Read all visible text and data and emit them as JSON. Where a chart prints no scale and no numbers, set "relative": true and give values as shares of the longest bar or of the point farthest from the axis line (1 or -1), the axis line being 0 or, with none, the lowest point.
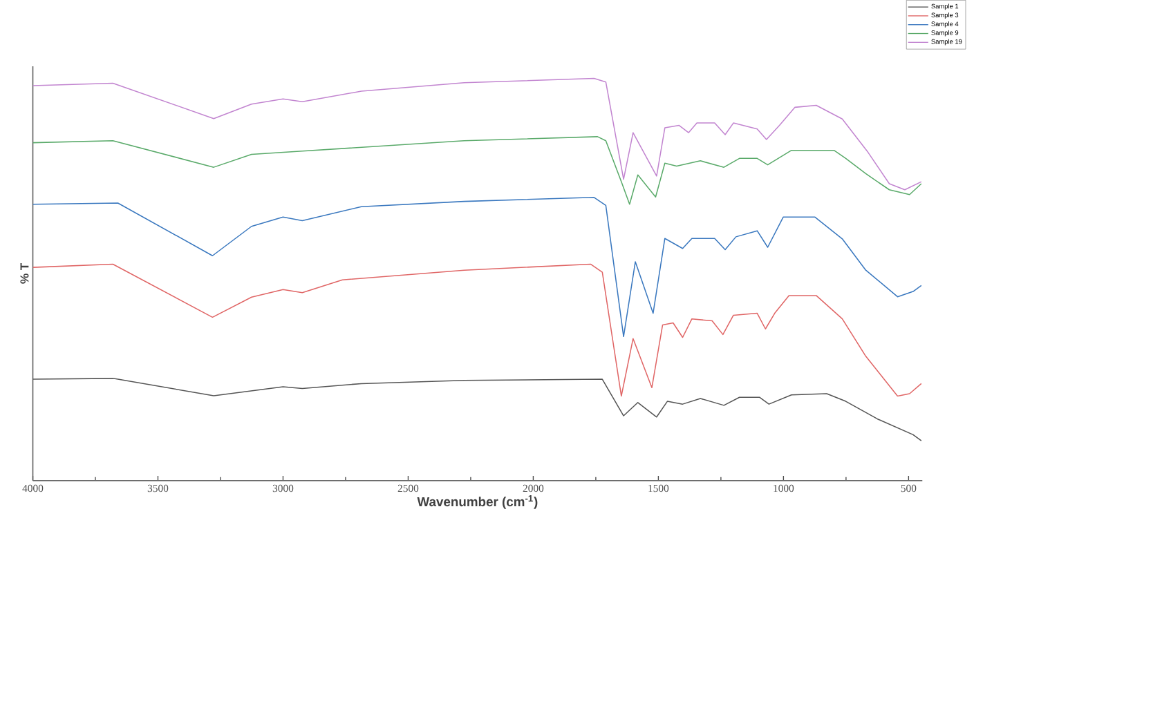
{
  "chart_data": {
    "type": "line",
    "relative": true,
    "xlabel": "Wavenumber (cm$^{-1}$)",
    "ylabel": "% T",
    "xlim": [
      4000,
      445
    ],
    "xticks": [
      4000,
      3500,
      3000,
      2500,
      2000,
      1500,
      1000,
      500
    ],
    "legend": "top right",
    "series": [
      {
        "name": "Sample 1",
        "color": "#555555",
        "x": [
          4000,
          3680,
          3277,
          3000,
          2923,
          2687,
          2276,
          1724,
          1639,
          1582,
          1507,
          1464,
          1403,
          1332,
          1238,
          1176,
          1096,
          1058,
          968,
          827,
          751,
          624,
          482,
          449
        ],
        "values": [
          0.252,
          0.254,
          0.211,
          0.233,
          0.229,
          0.241,
          0.249,
          0.252,
          0.161,
          0.194,
          0.158,
          0.197,
          0.19,
          0.204,
          0.187,
          0.207,
          0.207,
          0.19,
          0.213,
          0.216,
          0.197,
          0.153,
          0.114,
          0.099
        ]
      },
      {
        "name": "Sample 3",
        "color": "#e06666",
        "x": [
          4000,
          3680,
          3282,
          3126,
          3000,
          2923,
          2763,
          2276,
          1771,
          1724,
          1648,
          1601,
          1526,
          1483,
          1441,
          1403,
          1366,
          1285,
          1242,
          1200,
          1105,
          1072,
          1035,
          978,
          869,
          765,
          671,
          544,
          496,
          449
        ],
        "values": [
          0.53,
          0.538,
          0.406,
          0.456,
          0.475,
          0.467,
          0.499,
          0.523,
          0.538,
          0.518,
          0.21,
          0.353,
          0.231,
          0.387,
          0.392,
          0.356,
          0.402,
          0.397,
          0.363,
          0.411,
          0.416,
          0.377,
          0.416,
          0.46,
          0.46,
          0.402,
          0.309,
          0.21,
          0.216,
          0.241
        ]
      },
      {
        "name": "Sample 4",
        "color": "#3a78bf",
        "x": [
          4000,
          3660,
          3282,
          3126,
          3000,
          2923,
          2687,
          2276,
          1757,
          1710,
          1639,
          1592,
          1521,
          1474,
          1403,
          1366,
          1275,
          1233,
          1190,
          1105,
          1063,
          1001,
          874,
          765,
          671,
          544,
          482,
          449
        ],
        "values": [
          0.687,
          0.69,
          0.559,
          0.632,
          0.655,
          0.646,
          0.681,
          0.694,
          0.704,
          0.684,
          0.358,
          0.544,
          0.416,
          0.602,
          0.577,
          0.602,
          0.602,
          0.574,
          0.606,
          0.621,
          0.58,
          0.655,
          0.655,
          0.601,
          0.523,
          0.457,
          0.47,
          0.485
        ]
      },
      {
        "name": "Sample 9",
        "color": "#5aaa6a",
        "x": [
          4000,
          3680,
          3277,
          3126,
          2923,
          2276,
          1743,
          1710,
          1648,
          1615,
          1582,
          1511,
          1474,
          1427,
          1332,
          1238,
          1176,
          1105,
          1063,
          968,
          798,
          751,
          671,
          577,
          496,
          449
        ],
        "values": [
          0.84,
          0.845,
          0.779,
          0.811,
          0.819,
          0.845,
          0.855,
          0.845,
          0.743,
          0.687,
          0.76,
          0.705,
          0.789,
          0.782,
          0.795,
          0.779,
          0.801,
          0.801,
          0.785,
          0.821,
          0.821,
          0.801,
          0.763,
          0.723,
          0.711,
          0.738
        ]
      },
      {
        "name": "Sample 19",
        "color": "#c285d0",
        "x": [
          4000,
          3680,
          3277,
          3126,
          3000,
          2923,
          2687,
          2276,
          1757,
          1710,
          1639,
          1601,
          1507,
          1474,
          1417,
          1379,
          1346,
          1275,
          1233,
          1200,
          1105,
          1068,
          1016,
          954,
          869,
          765,
          662,
          577,
          515,
          449
        ],
        "values": [
          0.982,
          0.988,
          0.9,
          0.936,
          0.949,
          0.942,
          0.968,
          0.989,
          1.0,
          0.991,
          0.749,
          0.865,
          0.757,
          0.877,
          0.883,
          0.865,
          0.889,
          0.889,
          0.86,
          0.889,
          0.874,
          0.848,
          0.883,
          0.928,
          0.933,
          0.899,
          0.816,
          0.738,
          0.723,
          0.743
        ]
      }
    ]
  }
}
